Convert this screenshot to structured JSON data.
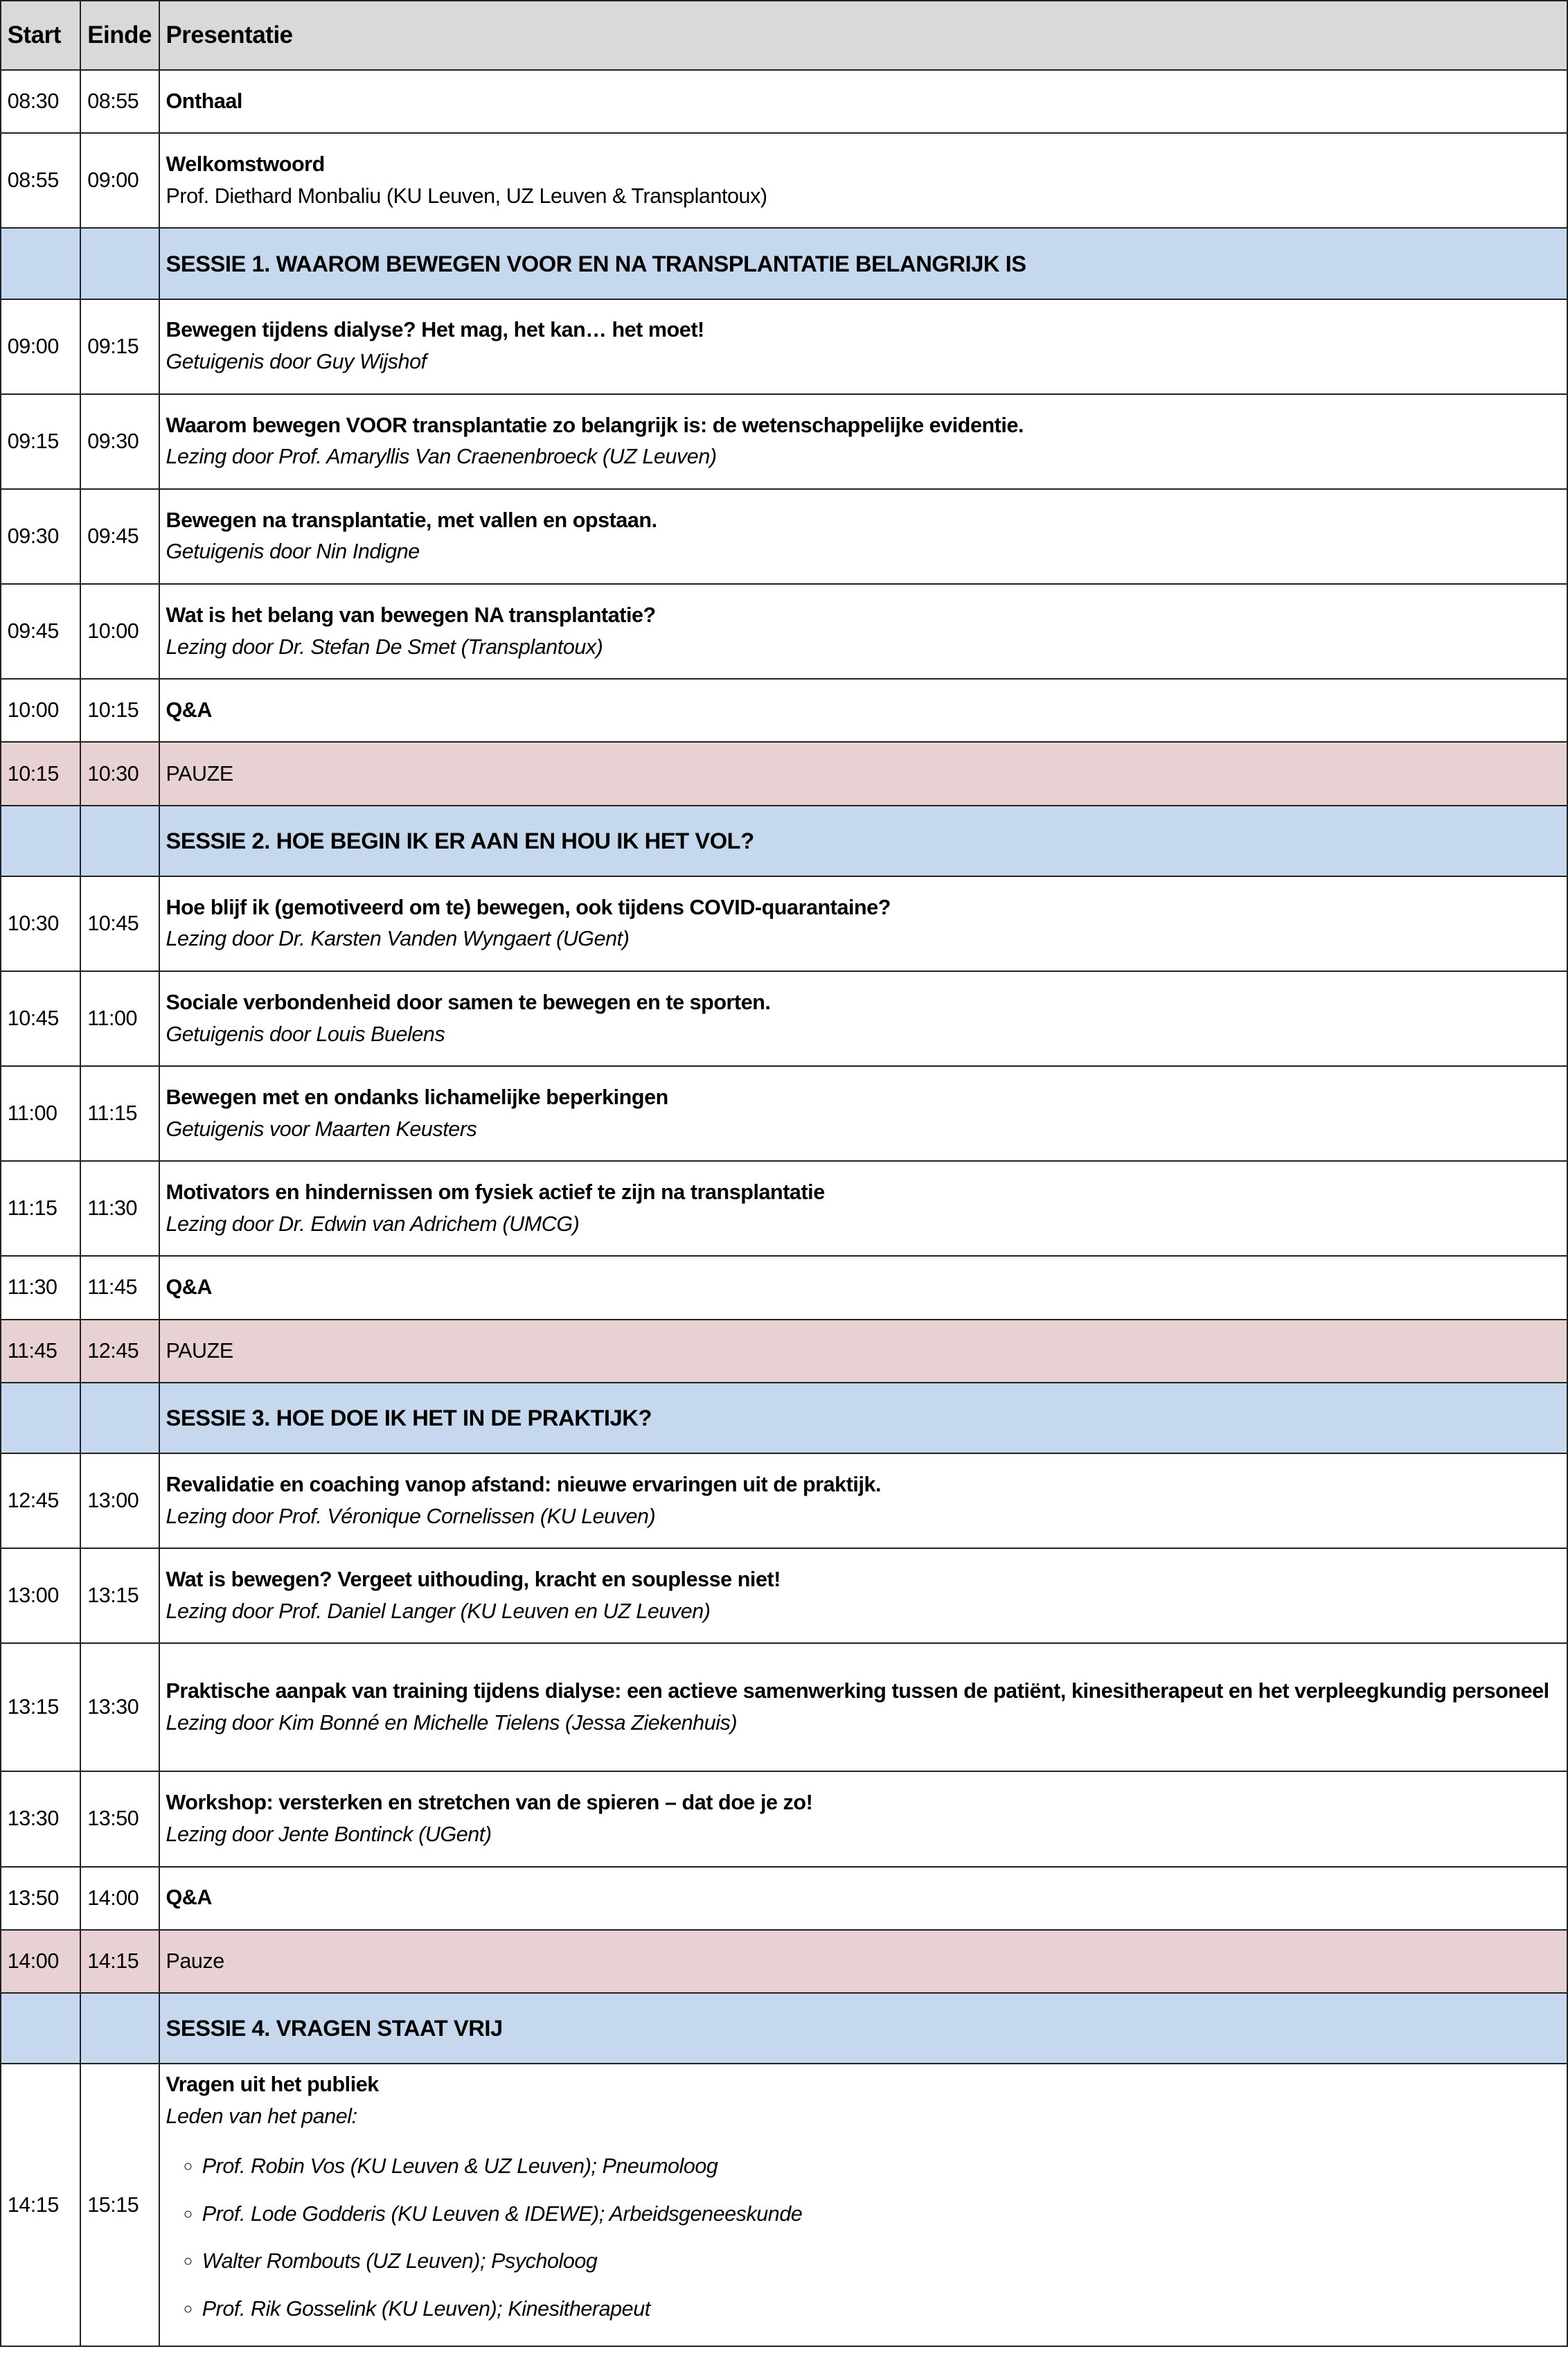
{
  "headers": [
    "Start",
    "Einde",
    "Presentatie"
  ],
  "colors": {
    "header": "#d9d9d9",
    "session": "#c6d8ee",
    "pauze": "#e8d1d3"
  },
  "rows": [
    {
      "type": "item",
      "start": "08:30",
      "end": "08:55",
      "title": "Onthaal"
    },
    {
      "type": "item",
      "start": "08:55",
      "end": "09:00",
      "title": "Welkomstwoord",
      "sub": "Prof. Diethard Monbaliu (KU Leuven, UZ Leuven & Transplantoux)",
      "sub_italic": false
    },
    {
      "type": "session",
      "title": "SESSIE 1. WAAROM BEWEGEN VOOR EN NA TRANSPLANTATIE BELANGRIJK IS"
    },
    {
      "type": "item",
      "start": "09:00",
      "end": "09:15",
      "title": "Bewegen tijdens dialyse? Het mag, het kan… het moet!",
      "sub": "Getuigenis door Guy Wijshof"
    },
    {
      "type": "item",
      "start": "09:15",
      "end": "09:30",
      "title": "Waarom bewegen VOOR transplantatie zo belangrijk is: de wetenschappelijke evidentie.",
      "sub": "Lezing door Prof. Amaryllis Van Craenenbroeck (UZ Leuven)"
    },
    {
      "type": "item",
      "start": "09:30",
      "end": "09:45",
      "title": "Bewegen na transplantatie, met vallen en opstaan.",
      "sub": "Getuigenis door Nin Indigne"
    },
    {
      "type": "item",
      "start": "09:45",
      "end": "10:00",
      "title": "Wat is het belang van bewegen NA transplantatie?",
      "sub": "Lezing door Dr. Stefan De Smet (Transplantoux)"
    },
    {
      "type": "item",
      "start": "10:00",
      "end": "10:15",
      "title": "Q&A"
    },
    {
      "type": "pauze",
      "start": "10:15",
      "end": "10:30",
      "title": "PAUZE"
    },
    {
      "type": "session",
      "title": "SESSIE 2. HOE BEGIN IK ER AAN EN HOU IK HET VOL?"
    },
    {
      "type": "item",
      "start": "10:30",
      "end": "10:45",
      "title": "Hoe blijf ik (gemotiveerd om te) bewegen, ook tijdens COVID-quarantaine?",
      "sub": "Lezing door Dr. Karsten Vanden Wyngaert (UGent)"
    },
    {
      "type": "item",
      "start": "10:45",
      "end": "11:00",
      "title": "Sociale verbondenheid door samen te bewegen en te sporten.",
      "sub": "Getuigenis door Louis Buelens"
    },
    {
      "type": "item",
      "start": "11:00",
      "end": "11:15",
      "title": "Bewegen met en ondanks lichamelijke beperkingen",
      "sub": "Getuigenis voor Maarten Keusters"
    },
    {
      "type": "item",
      "start": "11:15",
      "end": "11:30",
      "title": "Motivators en hindernissen om fysiek actief te zijn na transplantatie",
      "sub": "Lezing door Dr. Edwin van Adrichem (UMCG)"
    },
    {
      "type": "item",
      "start": "11:30",
      "end": "11:45",
      "title": "Q&A"
    },
    {
      "type": "pauze",
      "start": "11:45",
      "end": "12:45",
      "title": "PAUZE"
    },
    {
      "type": "session",
      "title": "SESSIE 3. HOE DOE IK HET IN DE PRAKTIJK?"
    },
    {
      "type": "item",
      "start": "12:45",
      "end": "13:00",
      "title": "Revalidatie en coaching vanop afstand: nieuwe ervaringen uit de praktijk.",
      "sub": "Lezing door Prof. Véronique Cornelissen (KU Leuven)"
    },
    {
      "type": "item",
      "start": "13:00",
      "end": "13:15",
      "title": "Wat is bewegen? Vergeet uithouding, kracht en souplesse niet!",
      "sub": "Lezing door Prof. Daniel Langer (KU Leuven en UZ Leuven)"
    },
    {
      "type": "item",
      "start": "13:15",
      "end": "13:30",
      "title": "Praktische aanpak van training tijdens dialyse: een actieve samenwerking tussen de patiënt, kinesitherapeut en het verpleegkundig personeel",
      "sub": "Lezing door Kim Bonné en Michelle Tielens (Jessa Ziekenhuis)"
    },
    {
      "type": "item",
      "start": "13:30",
      "end": "13:50",
      "title": "Workshop: versterken en stretchen van de spieren – dat doe je zo!",
      "sub": "Lezing door Jente Bontinck (UGent)"
    },
    {
      "type": "item",
      "start": "13:50",
      "end": "14:00",
      "title": "Q&A"
    },
    {
      "type": "pauze",
      "start": "14:00",
      "end": "14:15",
      "title": "Pauze"
    },
    {
      "type": "session",
      "title": "SESSIE 4. VRAGEN STAAT VRIJ"
    },
    {
      "type": "panel",
      "start": "14:15",
      "end": "15:15",
      "title": "Vragen uit het publiek",
      "sub": "Leden van het panel:",
      "members": [
        "Prof. Robin Vos (KU Leuven & UZ Leuven); Pneumoloog",
        "Prof. Lode Godderis (KU Leuven & IDEWE); Arbeidsgeneeskunde",
        "Walter Rombouts (UZ Leuven); Psycholoog",
        "Prof. Rik Gosselink (KU Leuven); Kinesitherapeut"
      ]
    }
  ]
}
